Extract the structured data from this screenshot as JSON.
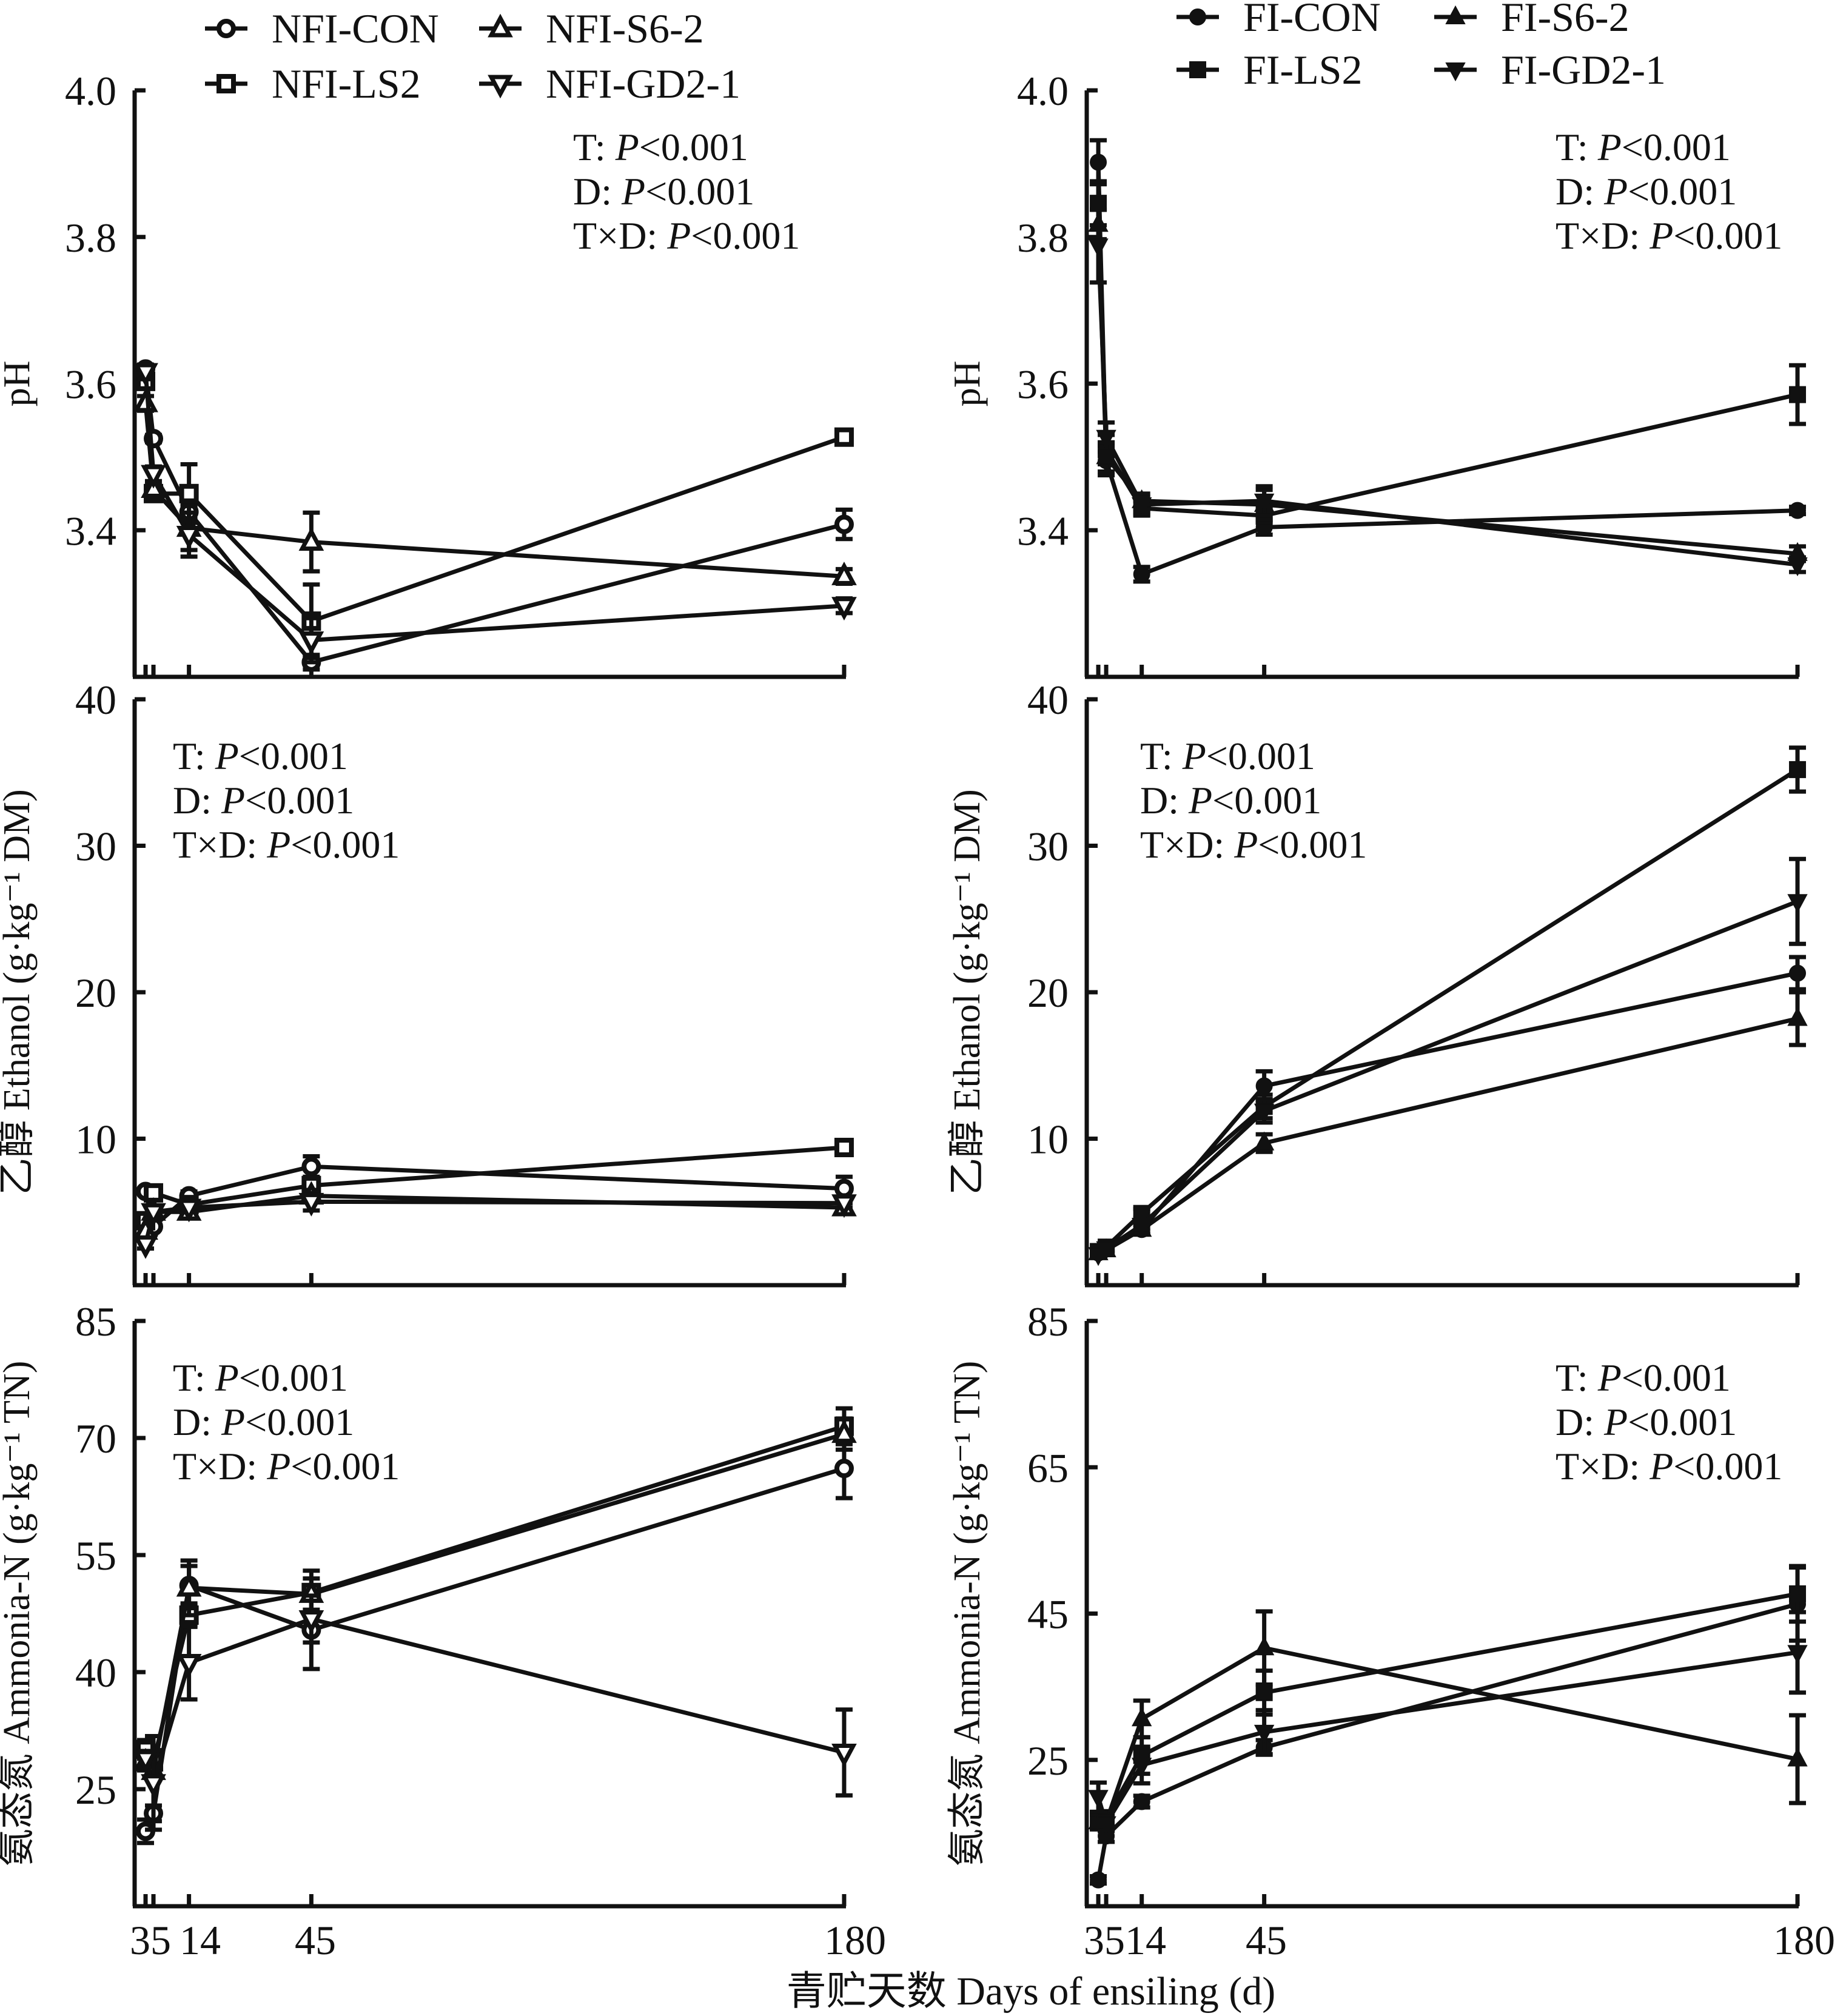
{
  "chart_data": [
    {
      "id": "nfi-ph",
      "type": "line",
      "group": "NFI",
      "ylabel": "pH",
      "ylim": [
        3.2,
        4.0
      ],
      "yticks": [
        "4.0",
        "3.8",
        "3.6",
        "3.4"
      ],
      "ytick_values": [
        4.0,
        3.8,
        3.6,
        3.4
      ],
      "x": [
        3,
        5,
        14,
        45,
        180
      ],
      "stats": [
        "T: |P|<0.001",
        "D: |P|<0.001",
        "T×D: |P|<0.001"
      ],
      "stats_position": "top-right",
      "series": [
        {
          "name": "NFI-CON",
          "marker": "circle-open",
          "values": [
            3.62,
            3.525,
            3.425,
            3.22,
            3.408
          ],
          "err": [
            0.005,
            0.005,
            0.01,
            0.01,
            0.02
          ]
        },
        {
          "name": "NFI-LS2",
          "marker": "square-open",
          "values": [
            3.603,
            3.45,
            3.45,
            3.276,
            3.527
          ],
          "err": [
            0.01,
            0.005,
            0.04,
            0.05,
            0.01
          ]
        },
        {
          "name": "NFI-S6-2",
          "marker": "triangle-up-open",
          "values": [
            3.573,
            3.456,
            3.403,
            3.384,
            3.337
          ],
          "err": [
            0.01,
            0.01,
            0.03,
            0.04,
            0.01
          ]
        },
        {
          "name": "NFI-GD2-1",
          "marker": "triangle-down-open",
          "values": [
            3.616,
            3.477,
            3.394,
            3.25,
            3.297
          ],
          "err": [
            0.01,
            0.01,
            0.03,
            0.03,
            0.01
          ]
        }
      ]
    },
    {
      "id": "fi-ph",
      "type": "line",
      "group": "FI",
      "ylabel": "pH",
      "ylim": [
        3.2,
        4.0
      ],
      "yticks": [
        "4.0",
        "3.8",
        "3.6",
        "3.4"
      ],
      "ytick_values": [
        4.0,
        3.8,
        3.6,
        3.4
      ],
      "x": [
        3,
        5,
        14,
        45,
        180
      ],
      "stats": [
        "T: |P|<0.001",
        "D: |P|<0.001",
        "T×D: |P|<0.001"
      ],
      "stats_position": "top-right",
      "series": [
        {
          "name": "FI-CON",
          "marker": "circle-filled",
          "values": [
            3.902,
            3.495,
            3.34,
            3.404,
            3.427
          ],
          "err": [
            0.03,
            0.02,
            0.01,
            0.01,
            0.005
          ]
        },
        {
          "name": "FI-LS2",
          "marker": "square-filled",
          "values": [
            3.846,
            3.51,
            3.43,
            3.42,
            3.585
          ],
          "err": [
            0.03,
            0.02,
            0.01,
            0.01,
            0.04
          ]
        },
        {
          "name": "FI-S6-2",
          "marker": "triangle-up-filled",
          "values": [
            3.817,
            3.5,
            3.44,
            3.435,
            3.368
          ],
          "err": [
            0.02,
            0.02,
            0.01,
            0.02,
            0.01
          ]
        },
        {
          "name": "FI-GD2-1",
          "marker": "triangle-down-filled",
          "values": [
            3.788,
            3.527,
            3.435,
            3.44,
            3.353
          ],
          "err": [
            0.05,
            0.02,
            0.01,
            0.02,
            0.01
          ]
        }
      ]
    },
    {
      "id": "nfi-ethanol",
      "type": "line",
      "group": "NFI",
      "ylabel": "乙醇 Ethanol (g·kg⁻¹ DM)",
      "ylim": [
        0,
        40
      ],
      "yticks": [
        "40",
        "30",
        "20",
        "10"
      ],
      "ytick_values": [
        40,
        30,
        20,
        10
      ],
      "x": [
        3,
        5,
        14,
        45,
        180
      ],
      "stats": [
        "T: |P|<0.001",
        "D: |P|<0.001",
        "T×D: |P|<0.001"
      ],
      "stats_position": "top-left",
      "series": [
        {
          "name": "NFI-CON",
          "marker": "circle-open",
          "values": [
            6.4,
            4.0,
            6.1,
            8.1,
            6.6
          ],
          "err": [
            0.2,
            0.2,
            0.3,
            0.7,
            0.8
          ]
        },
        {
          "name": "NFI-LS2",
          "marker": "square-open",
          "values": [
            4.4,
            6.3,
            5.5,
            6.8,
            9.4
          ],
          "err": [
            0.3,
            0.3,
            0.3,
            0.5,
            0.3
          ]
        },
        {
          "name": "NFI-S6-2",
          "marker": "triangle-up-open",
          "values": [
            3.7,
            5.0,
            5.0,
            6.1,
            5.3
          ],
          "err": [
            0.3,
            0.3,
            0.3,
            0.4,
            0.3
          ]
        },
        {
          "name": "NFI-GD2-1",
          "marker": "triangle-down-open",
          "values": [
            2.8,
            5.0,
            5.3,
            5.7,
            5.6
          ],
          "err": [
            0.3,
            0.3,
            0.3,
            0.6,
            0.3
          ]
        }
      ]
    },
    {
      "id": "fi-ethanol",
      "type": "line",
      "group": "FI",
      "ylabel": "乙醇 Ethanol (g·kg⁻¹ DM)",
      "ylim": [
        0,
        40
      ],
      "yticks": [
        "40",
        "30",
        "20",
        "10"
      ],
      "ytick_values": [
        40,
        30,
        20,
        10
      ],
      "x": [
        3,
        5,
        14,
        45,
        180
      ],
      "stats": [
        "T: |P|<0.001",
        "D: |P|<0.001",
        "T×D: |P|<0.001"
      ],
      "stats_position": "top-left",
      "series": [
        {
          "name": "FI-CON",
          "marker": "circle-filled",
          "values": [
            2.2,
            2.5,
            3.8,
            13.6,
            21.3
          ],
          "err": [
            0.2,
            0.2,
            0.3,
            1.0,
            1.1
          ]
        },
        {
          "name": "FI-LS2",
          "marker": "square-filled",
          "values": [
            2.3,
            2.6,
            4.9,
            12.2,
            35.2
          ],
          "err": [
            0.2,
            0.2,
            0.3,
            0.8,
            1.5
          ]
        },
        {
          "name": "FI-S6-2",
          "marker": "triangle-up-filled",
          "values": [
            2.2,
            2.4,
            3.8,
            9.7,
            18.2
          ],
          "err": [
            0.2,
            0.2,
            0.3,
            0.6,
            1.8
          ]
        },
        {
          "name": "FI-GD2-1",
          "marker": "triangle-down-filled",
          "values": [
            2.1,
            2.5,
            4.1,
            11.9,
            26.2
          ],
          "err": [
            0.2,
            0.2,
            0.3,
            0.8,
            2.9
          ]
        }
      ]
    },
    {
      "id": "nfi-ammonia",
      "type": "line",
      "group": "NFI",
      "ylabel": "氨态氮 Ammonia-N (g·kg⁻¹ TN)",
      "ylim": [
        10,
        85
      ],
      "yticks": [
        "85",
        "70",
        "55",
        "40",
        "25"
      ],
      "ytick_values": [
        85,
        70,
        55,
        40,
        25
      ],
      "x": [
        3,
        5,
        14,
        45,
        180
      ],
      "stats": [
        "T: |P|<0.001",
        "D: |P|<0.001",
        "T×D: |P|<0.001"
      ],
      "stats_position": "top-left",
      "series": [
        {
          "name": "NFI-CON",
          "marker": "circle-open",
          "values": [
            19.6,
            21.9,
            51.1,
            45.4,
            66.1
          ],
          "err": [
            1.5,
            1.0,
            2.5,
            5.0,
            3.8
          ]
        },
        {
          "name": "NFI-LS2",
          "marker": "square-open",
          "values": [
            30.1,
            28.5,
            47.3,
            50.2,
            71.5
          ],
          "err": [
            1.2,
            1.5,
            1.5,
            2.8,
            2.3
          ]
        },
        {
          "name": "NFI-S6-2",
          "marker": "triangle-up-open",
          "values": [
            28.4,
            27.3,
            50.8,
            50.0,
            70.5
          ],
          "err": [
            1.0,
            1.0,
            3.5,
            2.0,
            2.0
          ]
        },
        {
          "name": "NFI-GD2-1",
          "marker": "triangle-down-open",
          "values": [
            28.9,
            25.8,
            41.2,
            46.8,
            29.7
          ],
          "err": [
            1.0,
            6.0,
            4.7,
            3.0,
            5.5
          ]
        }
      ]
    },
    {
      "id": "fi-ammonia",
      "type": "line",
      "group": "FI",
      "ylabel": "氨态氮 Ammonia-N (g·kg⁻¹ TN)",
      "ylim": [
        5,
        85
      ],
      "yticks": [
        "85",
        "65",
        "45",
        "25"
      ],
      "ytick_values": [
        85,
        65,
        45,
        25
      ],
      "x": [
        3,
        5,
        14,
        45,
        180
      ],
      "stats": [
        "T: |P|<0.001",
        "D: |P|<0.001",
        "T×D: |P|<0.001"
      ],
      "stats_position": "top-right",
      "series": [
        {
          "name": "FI-CON",
          "marker": "circle-filled",
          "values": [
            8.6,
            14.6,
            19.3,
            26.7,
            46.3
          ],
          "err": [
            0.5,
            0.8,
            0.8,
            1.0,
            5.0
          ]
        },
        {
          "name": "FI-LS2",
          "marker": "square-filled",
          "values": [
            16.9,
            17.0,
            25.6,
            34.2,
            47.7
          ],
          "err": [
            1.0,
            1.0,
            2.5,
            3.0,
            3.8
          ]
        },
        {
          "name": "FI-S6-2",
          "marker": "triangle-up-filled",
          "values": [
            16.5,
            16.5,
            30.6,
            40.3,
            25.1
          ],
          "err": [
            1.0,
            1.0,
            2.5,
            5.0,
            6.0
          ]
        },
        {
          "name": "FI-GD2-1",
          "marker": "triangle-down-filled",
          "values": [
            19.9,
            16.3,
            24.3,
            28.8,
            39.7
          ],
          "err": [
            2.0,
            1.0,
            2.5,
            3.0,
            5.5
          ]
        }
      ]
    }
  ],
  "legends": {
    "nfi": [
      {
        "label": "NFI-CON",
        "marker": "circle-open"
      },
      {
        "label": "NFI-S6-2",
        "marker": "triangle-up-open"
      },
      {
        "label": "NFI-LS2",
        "marker": "square-open"
      },
      {
        "label": "NFI-GD2-1",
        "marker": "triangle-down-open"
      }
    ],
    "fi": [
      {
        "label": "FI-CON",
        "marker": "circle-filled"
      },
      {
        "label": "FI-S6-2",
        "marker": "triangle-up-filled"
      },
      {
        "label": "FI-LS2",
        "marker": "square-filled"
      },
      {
        "label": "FI-GD2-1",
        "marker": "triangle-down-filled"
      }
    ]
  },
  "xaxis": {
    "tick_values": [
      3,
      5,
      14,
      45,
      180
    ],
    "left_tick_labels": [
      "35",
      "14",
      "45",
      "180"
    ],
    "right_tick_labels": [
      "3514",
      "45",
      "180"
    ],
    "title": "青贮天数 Days of ensiling (d)"
  },
  "colors": {
    "ink": "#111111",
    "background": "#ffffff"
  }
}
